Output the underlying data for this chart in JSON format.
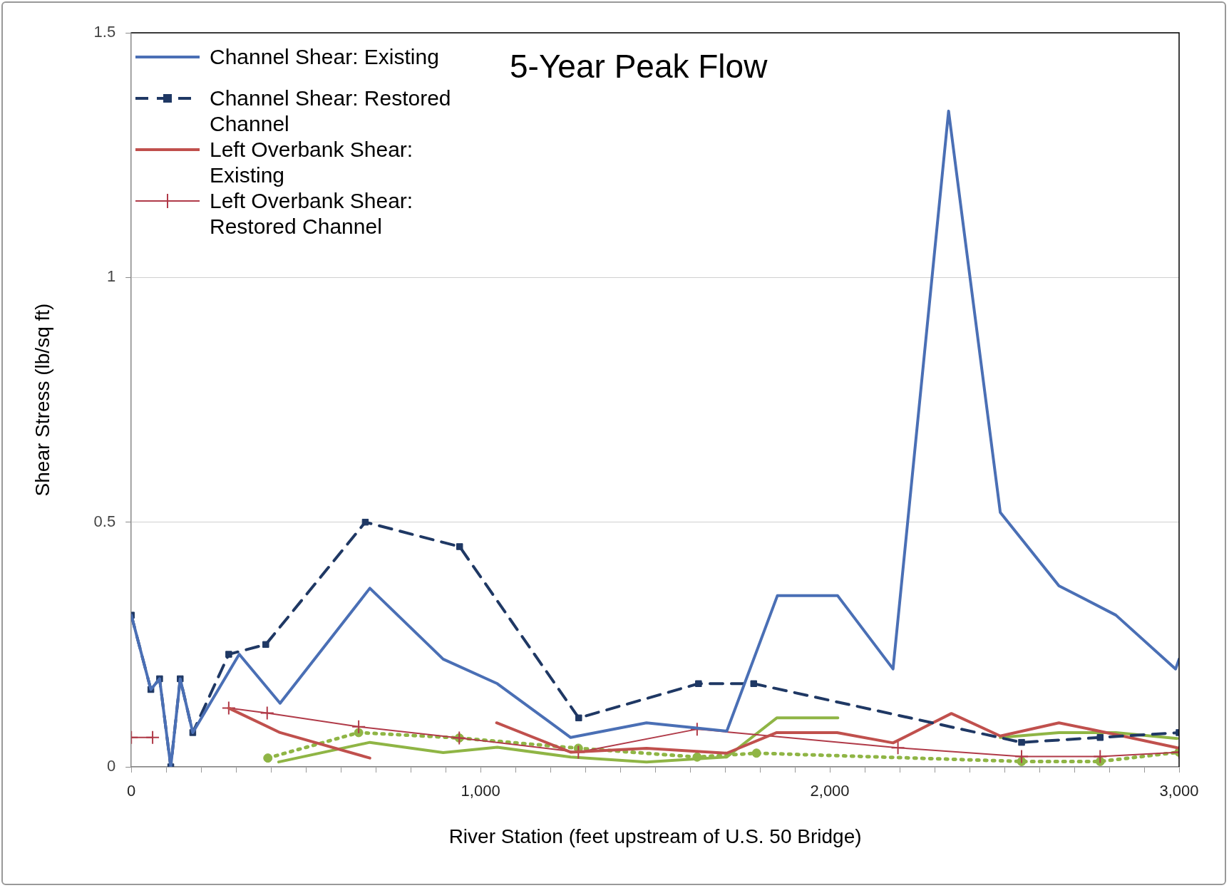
{
  "chart_data": {
    "type": "line",
    "title": "5-Year Peak Flow",
    "xlabel": "River Station (feet upstream of U.S. 50 Bridge)",
    "ylabel": "Shear Stress (lb/sq ft)",
    "xlim": [
      0,
      3000
    ],
    "ylim": [
      0,
      1.5
    ],
    "xticks": [
      0,
      {
        "value": 100,
        "label": null
      },
      {
        "value": 200,
        "label": null
      },
      {
        "value": 300,
        "label": null
      },
      {
        "value": 400,
        "label": null
      },
      {
        "value": 500,
        "label": null
      },
      {
        "value": 600,
        "label": null
      },
      {
        "value": 700,
        "label": null
      },
      {
        "value": 800,
        "label": null
      },
      {
        "value": 900,
        "label": null
      },
      {
        "value": 1000,
        "label": "1,000"
      },
      {
        "value": 1100,
        "label": null
      },
      {
        "value": 1200,
        "label": null
      },
      {
        "value": 1300,
        "label": null
      },
      {
        "value": 1400,
        "label": null
      },
      {
        "value": 1500,
        "label": null
      },
      {
        "value": 1600,
        "label": null
      },
      {
        "value": 1700,
        "label": null
      },
      {
        "value": 1800,
        "label": null
      },
      {
        "value": 1900,
        "label": null
      },
      {
        "value": 2000,
        "label": "2,000"
      },
      {
        "value": 2100,
        "label": null
      },
      {
        "value": 2200,
        "label": null
      },
      {
        "value": 2300,
        "label": null
      },
      {
        "value": 2400,
        "label": null
      },
      {
        "value": 2500,
        "label": null
      },
      {
        "value": 2600,
        "label": null
      },
      {
        "value": 2700,
        "label": null
      },
      {
        "value": 2800,
        "label": null
      },
      {
        "value": 2900,
        "label": null
      },
      {
        "value": 3000,
        "label": "3,000"
      }
    ],
    "yticks": [
      0,
      0.5,
      1,
      1.5
    ],
    "grid": "y",
    "legend": "top left",
    "series": [
      {
        "name": "Channel Shear: Existing",
        "color": "#4a6fb5",
        "marker": "none",
        "line_style": "solid",
        "x": [
          0,
          56,
          81,
          113,
          140,
          176,
          309,
          426,
          683,
          893,
          1048,
          1258,
          1475,
          1705,
          1850,
          2022,
          2181,
          2340,
          2488,
          2656,
          2819,
          2990,
          3000
        ],
        "values": [
          0.31,
          0.158,
          0.18,
          0,
          0.18,
          0.07,
          0.23,
          0.13,
          0.365,
          0.22,
          0.17,
          0.06,
          0.09,
          0.073,
          0.35,
          0.35,
          0.2,
          1.34,
          0.52,
          0.37,
          0.31,
          0.2,
          0.22
        ]
      },
      {
        "name": "Channel Shear: Restored Channel",
        "color": "#1f3864",
        "marker": "square",
        "line_style": "dashed",
        "x": [
          0,
          56,
          81,
          113,
          140,
          176,
          279,
          385,
          670,
          940,
          1281,
          1624,
          1782,
          2549,
          2774,
          3000
        ],
        "values": [
          0.31,
          0.158,
          0.18,
          0,
          0.18,
          0.07,
          0.23,
          0.25,
          0.5,
          0.45,
          0.1,
          0.17,
          0.17,
          0.05,
          0.06,
          0.07
        ]
      },
      {
        "name": "Left Overbank Shear: Existing",
        "color": "#c0504d",
        "marker": "none",
        "line_style": "solid",
        "x": [
          279,
          426,
          683,
          865,
          1046,
          1258,
          1475,
          1705,
          1848,
          2021,
          2181,
          2348,
          2488,
          2656,
          2819,
          2995
        ],
        "values": [
          0.12,
          0.07,
          0.018,
          null,
          0.09,
          0.03,
          0.038,
          0.028,
          0.07,
          0.07,
          0.049,
          0.109,
          0.063,
          0.09,
          0.066,
          0.039
        ]
      },
      {
        "name": "Left Overbank Shear: Restored Channel",
        "color": "#b03a48",
        "marker": "cross",
        "line_style": "solid",
        "x": [
          0,
          61,
          170,
          279,
          389,
          651,
          939,
          1280,
          1620,
          2195,
          2549,
          2774,
          3000
        ],
        "values": [
          0.06,
          0.06,
          null,
          0.12,
          0.11,
          0.082,
          0.059,
          0.03,
          0.077,
          0.039,
          0.021,
          0.021,
          0.03
        ]
      },
      {
        "color": "#8fb545",
        "marker": "none",
        "line_style": "solid",
        "x": [
          422,
          683,
          893,
          1048,
          1258,
          1475,
          1705,
          1848,
          2023,
          2250,
          2488,
          2656,
          2819,
          2995
        ],
        "values": [
          0.01,
          0.05,
          0.029,
          0.04,
          0.02,
          0.01,
          0.02,
          0.1,
          0.1,
          null,
          0.06,
          0.07,
          0.07,
          0.058
        ]
      },
      {
        "color": "#8fb545",
        "marker": "circle",
        "line_style": "dotted",
        "x": [
          391,
          651,
          939,
          1280,
          1620,
          1790,
          2549,
          2774,
          3000
        ],
        "values": [
          0.018,
          0.07,
          0.059,
          0.038,
          0.02,
          0.028,
          0.011,
          0.011,
          0.03
        ]
      }
    ]
  }
}
